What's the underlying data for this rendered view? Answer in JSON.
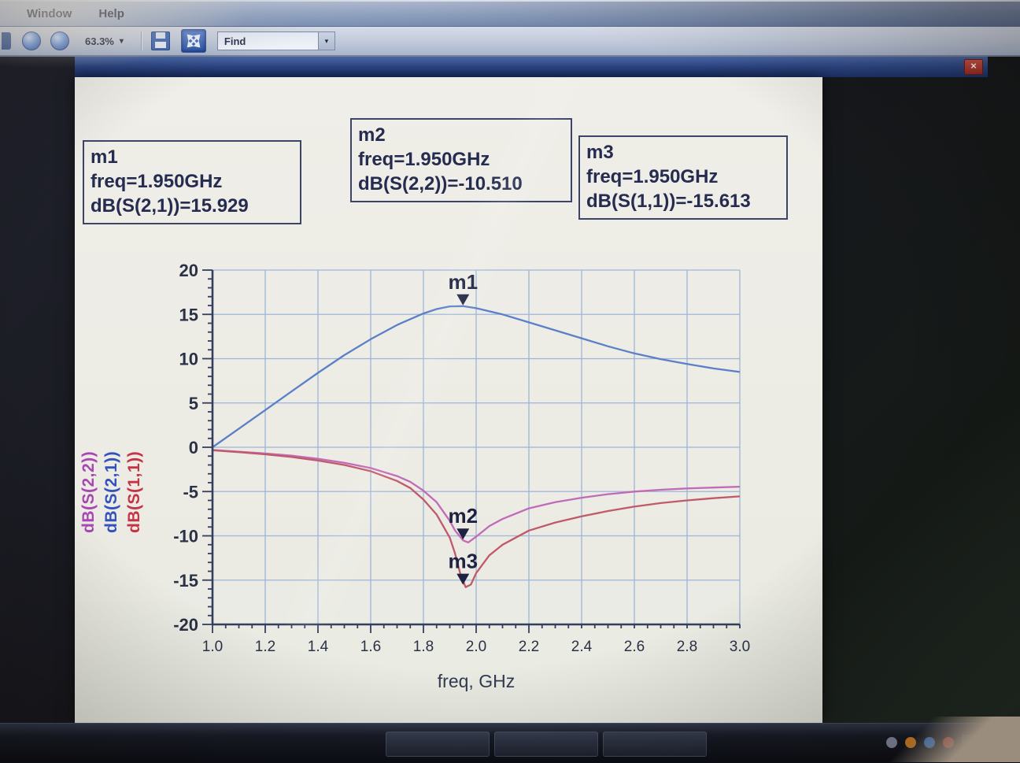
{
  "menu_bar": {
    "items": [
      "Window",
      "Help"
    ]
  },
  "toolbar": {
    "zoom_value": "63.3%",
    "find_value": "Find",
    "dropdown_arrow": "▾",
    "find_arrow": "▾"
  },
  "window_controls": {
    "close_glyph": "×"
  },
  "marker_boxes": [
    {
      "name": "m1",
      "freq_line": "freq=1.950GHz",
      "value_line": "dB(S(2,1))=15.929"
    },
    {
      "name": "m2",
      "freq_line": "freq=1.950GHz",
      "value_line": "dB(S(2,2))=-10.510"
    },
    {
      "name": "m3",
      "freq_line": "freq=1.950GHz",
      "value_line": "dB(S(1,1))=-15.613"
    }
  ],
  "chart_data": {
    "type": "line",
    "xlabel": "freq, GHz",
    "xlim": [
      1.0,
      3.0
    ],
    "ylim": [
      -20,
      20
    ],
    "xticks": [
      1.0,
      1.2,
      1.4,
      1.6,
      1.8,
      2.0,
      2.2,
      2.4,
      2.6,
      2.8,
      3.0
    ],
    "yticks": [
      20,
      15,
      10,
      5,
      0,
      -5,
      -10,
      -15,
      -20
    ],
    "grid": true,
    "grid_color": "#9db6d8",
    "axis_color": "#343f5e",
    "tick_text_color": "#2a3146",
    "ylabels": [
      {
        "text": "dB(S(2,2))",
        "color": "#a846b4"
      },
      {
        "text": "dB(S(2,1))",
        "color": "#3352bb"
      },
      {
        "text": "dB(S(1,1))",
        "color": "#c53344"
      }
    ],
    "series": [
      {
        "name": "dB(S(2,1))",
        "color": "#5b7fc8",
        "x": [
          1.0,
          1.1,
          1.2,
          1.3,
          1.4,
          1.5,
          1.6,
          1.7,
          1.8,
          1.85,
          1.9,
          1.95,
          2.0,
          2.1,
          2.2,
          2.3,
          2.4,
          2.5,
          2.6,
          2.7,
          2.8,
          2.9,
          3.0
        ],
        "y": [
          0,
          2.1,
          4.2,
          6.3,
          8.4,
          10.4,
          12.2,
          13.8,
          15.1,
          15.6,
          15.9,
          15.93,
          15.7,
          15.0,
          14.1,
          13.2,
          12.3,
          11.4,
          10.6,
          9.95,
          9.4,
          8.9,
          8.5
        ]
      },
      {
        "name": "dB(S(2,2))",
        "color": "#c06ab8",
        "x": [
          1.0,
          1.1,
          1.2,
          1.3,
          1.4,
          1.5,
          1.6,
          1.7,
          1.75,
          1.8,
          1.85,
          1.9,
          1.92,
          1.95,
          1.97,
          2.0,
          2.05,
          2.1,
          2.2,
          2.3,
          2.4,
          2.5,
          2.6,
          2.7,
          2.8,
          2.9,
          3.0
        ],
        "y": [
          -0.3,
          -0.5,
          -0.7,
          -0.95,
          -1.3,
          -1.75,
          -2.35,
          -3.25,
          -3.9,
          -4.9,
          -6.2,
          -8.3,
          -9.4,
          -10.51,
          -10.75,
          -10.1,
          -8.9,
          -8.1,
          -6.9,
          -6.2,
          -5.7,
          -5.3,
          -5.0,
          -4.8,
          -4.65,
          -4.55,
          -4.45
        ]
      },
      {
        "name": "dB(S(1,1))",
        "color": "#c05a6a",
        "x": [
          1.0,
          1.1,
          1.2,
          1.3,
          1.4,
          1.5,
          1.6,
          1.7,
          1.75,
          1.8,
          1.85,
          1.9,
          1.92,
          1.94,
          1.96,
          1.98,
          2.0,
          2.05,
          2.1,
          2.2,
          2.3,
          2.4,
          2.5,
          2.6,
          2.7,
          2.8,
          2.9,
          3.0
        ],
        "y": [
          -0.35,
          -0.55,
          -0.8,
          -1.1,
          -1.5,
          -2.0,
          -2.7,
          -3.8,
          -4.6,
          -5.9,
          -7.6,
          -10.2,
          -12.0,
          -14.3,
          -15.8,
          -15.5,
          -14.2,
          -12.2,
          -11.0,
          -9.4,
          -8.5,
          -7.8,
          -7.2,
          -6.7,
          -6.3,
          -6.0,
          -5.75,
          -5.55
        ]
      }
    ],
    "markers": [
      {
        "label": "m1",
        "x": 1.95,
        "y": 15.929
      },
      {
        "label": "m2",
        "x": 1.95,
        "y": -10.51
      },
      {
        "label": "m3",
        "x": 1.95,
        "y": -15.613
      }
    ],
    "marker_color": "#1c2240"
  }
}
